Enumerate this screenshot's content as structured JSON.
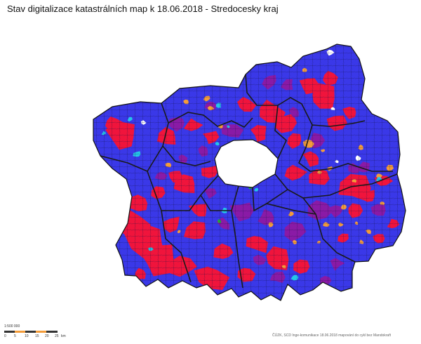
{
  "title": "Stav digitalizace katastrálních map k 18.06.2018 - Stredocesky kraj",
  "colors": {
    "background": "#ffffff",
    "boundary": "#1a1a1a",
    "blue": "#3a38e8",
    "red": "#f0143c",
    "purple": "#8a1aa6",
    "orange": "#f39c3a",
    "cyan": "#25c6e8",
    "white": "#ffffff",
    "green": "#1fae3a",
    "scale_dark": "#333333",
    "scale_orange": "#f39c3a"
  },
  "scale": {
    "ratio": "1:500 000",
    "unit": "km",
    "ticks": [
      "0",
      "5",
      "10",
      "15",
      "20",
      "25"
    ]
  },
  "attribution": "ČÚZK, SCD Inge-komunikace 18.06.2018 mapování do cykl bez Mandokraft"
}
